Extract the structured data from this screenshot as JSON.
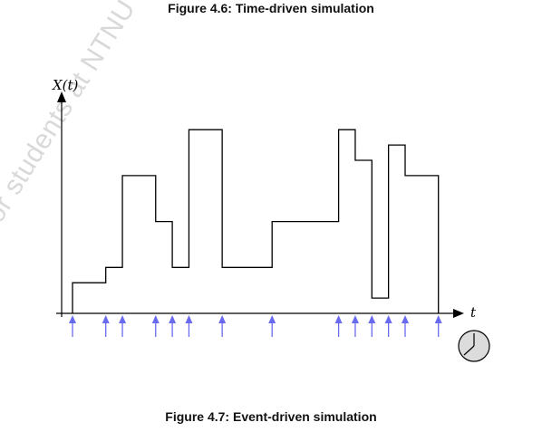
{
  "captions": {
    "top": "Figure 4.6: Time-driven simulation",
    "bottom": "Figure 4.7: Event-driven simulation"
  },
  "watermark": "For students at NTNU only – Do",
  "axes": {
    "y_label": "X(t)",
    "x_label": "t"
  },
  "chart_data": {
    "type": "line",
    "step": true,
    "line_color": "#000000",
    "arrow_color": "#6a6af0",
    "event_times": [
      0.0,
      1.0,
      1.5,
      2.5,
      3.0,
      3.5,
      4.5,
      6.0,
      8.0,
      8.5,
      9.0,
      9.5,
      10.0,
      11.0
    ],
    "levels": [
      0.0,
      1.0,
      1.5,
      4.5,
      3.0,
      1.5,
      6.0,
      1.5,
      3.0,
      6.0,
      5.0,
      0.5,
      5.5,
      4.5,
      0.0
    ],
    "clock_icon": "clock-icon"
  }
}
